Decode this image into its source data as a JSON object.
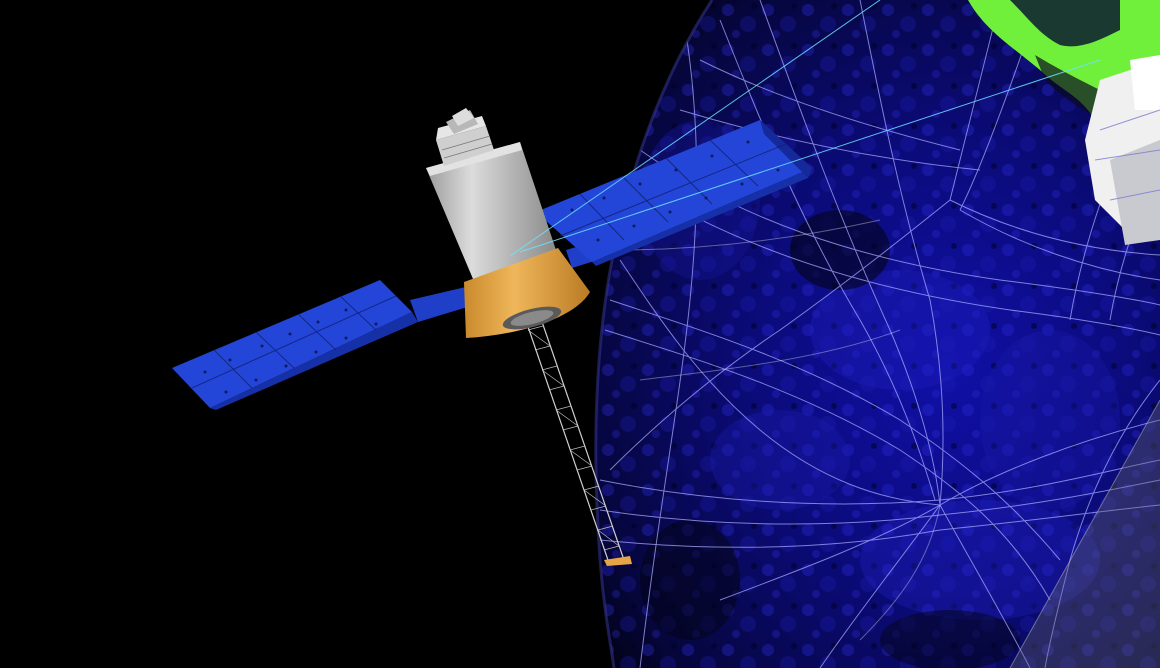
{
  "scene": {
    "background_color": "#000000",
    "objects": [
      {
        "name": "earth-globe",
        "description_colors": [
          "#07072a",
          "#1a1aa0",
          "#2a2ad8"
        ]
      },
      {
        "name": "satellite",
        "colors": {
          "panel": "#2346d8",
          "panel_dark": "#1630a8",
          "body": "#bdbdbd",
          "base": "#e8a546",
          "boom": "#cfcfcf"
        }
      },
      {
        "name": "land-overlay",
        "colors": {
          "green": "#6ef03c",
          "white": "#f0f0f0"
        }
      },
      {
        "name": "orbit-lines",
        "color": "#9a9aff"
      }
    ]
  }
}
